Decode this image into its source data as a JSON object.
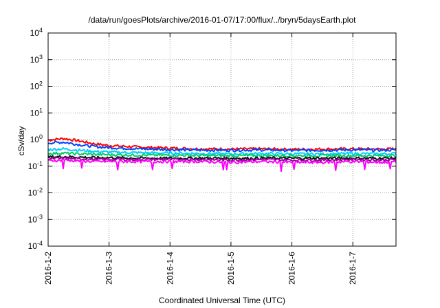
{
  "chart_data": {
    "type": "line",
    "title": "/data/run/goesPlots/archive/2016-01-07/17:00/flux/../bryn/5daysEarth.plot",
    "xlabel": "Coordinated Universal Time (UTC)",
    "ylabel": "cSv/day",
    "yscale": "log",
    "ylim": [
      0.0001,
      10000
    ],
    "yticks": [
      {
        "base": "10",
        "exp": "4"
      },
      {
        "base": "10",
        "exp": "3"
      },
      {
        "base": "10",
        "exp": "2"
      },
      {
        "base": "10",
        "exp": "1"
      },
      {
        "base": "10",
        "exp": "0"
      },
      {
        "base": "10",
        "exp": "-1"
      },
      {
        "base": "10",
        "exp": "-2"
      },
      {
        "base": "10",
        "exp": "-3"
      },
      {
        "base": "10",
        "exp": "-4"
      }
    ],
    "xlim": [
      "2016-01-02T00:00",
      "2016-01-07T17:00"
    ],
    "xticks": [
      "2016-1-2",
      "2016-1-3",
      "2016-1-4",
      "2016-1-5",
      "2016-1-6",
      "2016-1-7"
    ],
    "grid": true,
    "series_times": [
      "2016-01-02T00:00",
      "2016-01-02T06:00",
      "2016-01-02T12:00",
      "2016-01-02T18:00",
      "2016-01-03T00:00",
      "2016-01-03T12:00",
      "2016-01-04T00:00",
      "2016-01-04T12:00",
      "2016-01-05T00:00",
      "2016-01-05T12:00",
      "2016-01-06T00:00",
      "2016-01-06T12:00",
      "2016-01-07T00:00",
      "2016-01-07T12:00",
      "2016-01-07T17:00"
    ],
    "series": [
      {
        "color": "#ff0000",
        "values": [
          0.95,
          1.1,
          0.9,
          0.7,
          0.6,
          0.52,
          0.48,
          0.45,
          0.44,
          0.45,
          0.43,
          0.44,
          0.45,
          0.44,
          0.45
        ]
      },
      {
        "color": "#0044ff",
        "values": [
          0.75,
          0.8,
          0.65,
          0.55,
          0.5,
          0.45,
          0.42,
          0.4,
          0.4,
          0.41,
          0.39,
          0.4,
          0.41,
          0.4,
          0.41
        ]
      },
      {
        "color": "#00ccff",
        "values": [
          0.42,
          0.45,
          0.4,
          0.36,
          0.34,
          0.32,
          0.31,
          0.3,
          0.29,
          0.3,
          0.29,
          0.29,
          0.3,
          0.29,
          0.3
        ]
      },
      {
        "color": "#00cc66",
        "values": [
          0.3,
          0.31,
          0.29,
          0.28,
          0.27,
          0.26,
          0.26,
          0.25,
          0.25,
          0.25,
          0.25,
          0.25,
          0.25,
          0.25,
          0.25
        ]
      },
      {
        "color": "#111111",
        "values": [
          0.22,
          0.23,
          0.22,
          0.21,
          0.21,
          0.2,
          0.2,
          0.2,
          0.2,
          0.2,
          0.2,
          0.2,
          0.2,
          0.2,
          0.2
        ]
      },
      {
        "color": "#990099",
        "values": [
          0.19,
          0.2,
          0.19,
          0.18,
          0.18,
          0.18,
          0.18,
          0.18,
          0.17,
          0.18,
          0.17,
          0.17,
          0.18,
          0.17,
          0.18
        ]
      },
      {
        "color": "#ff00ff",
        "values": [
          0.16,
          0.17,
          0.16,
          0.15,
          0.15,
          0.15,
          0.15,
          0.15,
          0.14,
          0.15,
          0.14,
          0.14,
          0.15,
          0.14,
          0.15
        ]
      }
    ]
  }
}
